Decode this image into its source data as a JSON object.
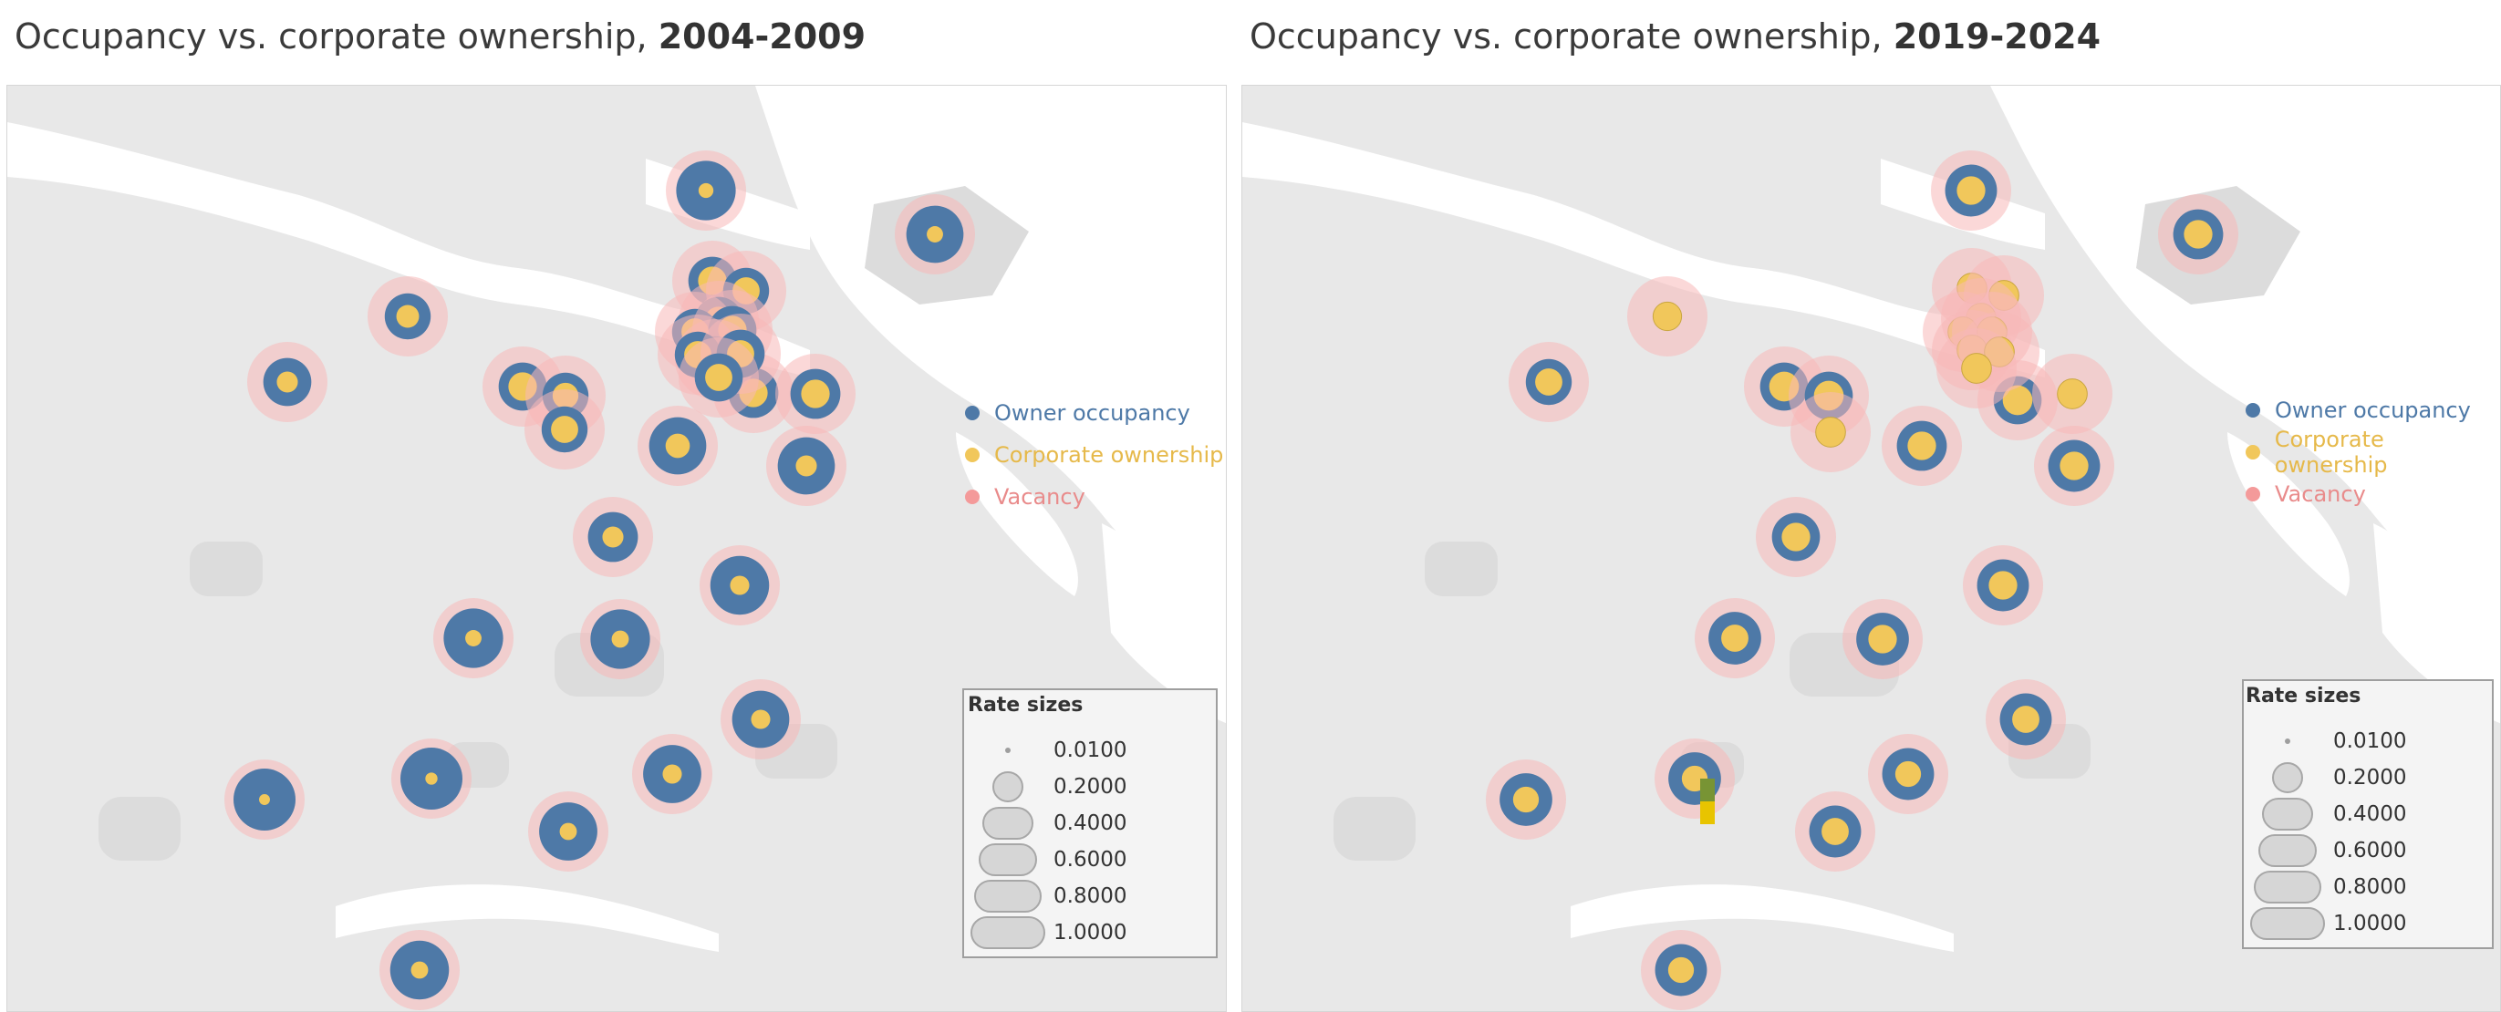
{
  "panels": [
    {
      "title_prefix": "Occupancy vs. corporate ownership, ",
      "title_years": "2004-2009",
      "markers": [
        {
          "owner": 0.92,
          "corp": 0.15
        },
        {
          "owner": 0.85,
          "corp": 0.18
        },
        {
          "owner": 0.55,
          "corp": 0.35
        },
        {
          "owner": 0.6,
          "corp": 0.3
        },
        {
          "owner": 0.6,
          "corp": 0.55
        },
        {
          "owner": 0.55,
          "corp": 0.45
        },
        {
          "owner": 0.65,
          "corp": 0.55
        },
        {
          "owner": 0.85,
          "corp": 0.4
        },
        {
          "owner": 0.65,
          "corp": 0.55
        },
        {
          "owner": 0.55,
          "corp": 0.5
        },
        {
          "owner": 0.85,
          "corp": 0.3
        },
        {
          "owner": 0.65,
          "corp": 0.3
        },
        {
          "owner": 0.9,
          "corp": 0.25
        },
        {
          "owner": 0.92,
          "corp": 0.18
        },
        {
          "owner": 0.92,
          "corp": 0.2
        },
        {
          "owner": 0.85,
          "corp": 0.25
        },
        {
          "owner": 1.0,
          "corp": 0.1
        },
        {
          "owner": 0.88,
          "corp": 0.25
        },
        {
          "owner": 0.88,
          "corp": 0.2
        },
        {
          "owner": 1.0,
          "corp": 0.08
        },
        {
          "owner": 0.9,
          "corp": 0.2
        },
        {
          "owner": 0.6,
          "corp": 0.55
        },
        {
          "owner": 0.55,
          "corp": 0.5
        },
        {
          "owner": 0.6,
          "corp": 0.55
        },
        {
          "owner": 0.55,
          "corp": 0.5
        },
        {
          "owner": 0.6,
          "corp": 0.55
        },
        {
          "owner": 0.55,
          "corp": 0.5
        },
        {
          "owner": 0.55,
          "corp": 0.5
        },
        {
          "owner": 0.6,
          "corp": 0.5
        },
        {
          "owner": 0.6,
          "corp": 0.5
        }
      ]
    },
    {
      "title_prefix": "Occupancy vs. corporate ownership, ",
      "title_years": "2019-2024",
      "markers": [
        {
          "owner": 0.7,
          "corp": 0.55
        },
        {
          "owner": 0.65,
          "corp": 0.55
        },
        {
          "owner": 0.0,
          "corp": 0.55
        },
        {
          "owner": 0.55,
          "corp": 0.5
        },
        {
          "owner": 0.6,
          "corp": 0.6
        },
        {
          "owner": 0.6,
          "corp": 0.6
        },
        {
          "owner": 0.0,
          "corp": 0.6
        },
        {
          "owner": 0.6,
          "corp": 0.6
        },
        {
          "owner": 0.0,
          "corp": 0.6
        },
        {
          "owner": 0.65,
          "corp": 0.55
        },
        {
          "owner": 0.7,
          "corp": 0.55
        },
        {
          "owner": 0.6,
          "corp": 0.55
        },
        {
          "owner": 0.7,
          "corp": 0.55
        },
        {
          "owner": 0.72,
          "corp": 0.5
        },
        {
          "owner": 0.72,
          "corp": 0.55
        },
        {
          "owner": 0.7,
          "corp": 0.5
        },
        {
          "owner": 0.72,
          "corp": 0.45
        },
        {
          "owner": 0.7,
          "corp": 0.45
        },
        {
          "owner": 0.7,
          "corp": 0.5
        },
        {
          "owner": 0.72,
          "corp": 0.45
        },
        {
          "owner": 0.7,
          "corp": 0.45
        },
        {
          "owner": 0.0,
          "corp": 0.6
        },
        {
          "owner": 0.0,
          "corp": 0.6
        },
        {
          "owner": 0.0,
          "corp": 0.6
        },
        {
          "owner": 0.0,
          "corp": 0.6
        },
        {
          "owner": 0.0,
          "corp": 0.6
        },
        {
          "owner": 0.0,
          "corp": 0.6
        },
        {
          "owner": 0.0,
          "corp": 0.6
        },
        {
          "owner": 0.0,
          "corp": 0.6
        }
      ]
    }
  ],
  "legend": {
    "items": [
      {
        "label": "Owner occupancy",
        "color": "#4e79a7"
      },
      {
        "label": "Corporate ownership",
        "color": "#f1c75b"
      },
      {
        "label": "Vacancy",
        "color": "#f49a9a"
      }
    ]
  },
  "size_legend": {
    "title": "Rate sizes",
    "values": [
      "0.0100",
      "0.2000",
      "0.4000",
      "0.6000",
      "0.8000",
      "1.0000"
    ]
  },
  "colors": {
    "owner": "#4e79a7",
    "corporate": "#f1c75b",
    "vacancy": "#f7b8b8",
    "land": "#e7e7e7",
    "water": "#ffffff"
  }
}
